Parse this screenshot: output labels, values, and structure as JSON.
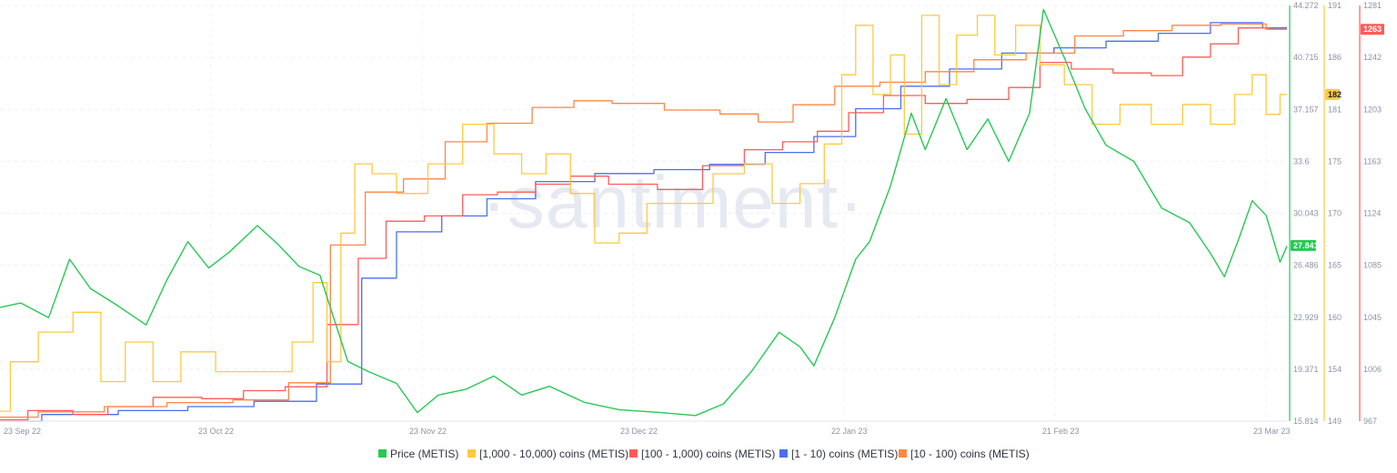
{
  "watermark": "·santiment·",
  "chart_data": {
    "type": "line",
    "x_labels": [
      "23 Sep 22",
      "23 Oct 22",
      "23 Nov 22",
      "23 Dec 22",
      "22 Jan 23",
      "21 Feb 23",
      "23 Mar 23"
    ],
    "x_range": [
      "2022-09-23",
      "2023-03-27"
    ],
    "grid": true,
    "legend_position": "bottom",
    "axes": [
      {
        "id": "price",
        "color": "#26c953",
        "range": [
          15.814,
          44.272
        ],
        "ticks": [
          "44.272",
          "40.715",
          "37.157",
          "33.6",
          "30.043",
          "26.486",
          "22.929",
          "19.371",
          "15.814"
        ],
        "current": "27.841"
      },
      {
        "id": "band1000",
        "color": "#ffc940",
        "range": [
          149,
          191
        ],
        "ticks": [
          "191",
          "186",
          "181",
          "175",
          "170",
          "165",
          "160",
          "154",
          "149"
        ],
        "current": "182"
      },
      {
        "id": "band100",
        "color": "#ff5b5b",
        "range": [
          967,
          1281
        ],
        "ticks": [
          "1281",
          "1242",
          "1203",
          "1163",
          "1124",
          "1085",
          "1045",
          "1006",
          "967"
        ],
        "current": "1263"
      }
    ],
    "series": [
      {
        "name": "Price (METIS)",
        "color": "#26c953",
        "axis": "price",
        "points": [
          [
            "2022-09-23",
            23.6
          ],
          [
            "2022-09-26",
            23.9
          ],
          [
            "2022-09-30",
            22.9
          ],
          [
            "2022-10-03",
            26.9
          ],
          [
            "2022-10-06",
            24.9
          ],
          [
            "2022-10-10",
            23.7
          ],
          [
            "2022-10-14",
            22.4
          ],
          [
            "2022-10-17",
            25.5
          ],
          [
            "2022-10-20",
            28.1
          ],
          [
            "2022-10-23",
            26.3
          ],
          [
            "2022-10-26",
            27.4
          ],
          [
            "2022-10-30",
            29.2
          ],
          [
            "2022-11-02",
            27.9
          ],
          [
            "2022-11-05",
            26.4
          ],
          [
            "2022-11-08",
            25.8
          ],
          [
            "2022-11-12",
            19.9
          ],
          [
            "2022-11-15",
            19.2
          ],
          [
            "2022-11-19",
            18.4
          ],
          [
            "2022-11-22",
            16.4
          ],
          [
            "2022-11-25",
            17.6
          ],
          [
            "2022-11-29",
            18.0
          ],
          [
            "2022-12-03",
            18.9
          ],
          [
            "2022-12-07",
            17.6
          ],
          [
            "2022-12-11",
            18.2
          ],
          [
            "2022-12-16",
            17.1
          ],
          [
            "2022-12-21",
            16.6
          ],
          [
            "2022-12-27",
            16.4
          ],
          [
            "2023-01-01",
            16.2
          ],
          [
            "2023-01-05",
            17.0
          ],
          [
            "2023-01-09",
            19.2
          ],
          [
            "2023-01-13",
            21.9
          ],
          [
            "2023-01-16",
            20.9
          ],
          [
            "2023-01-18",
            19.6
          ],
          [
            "2023-01-21",
            22.9
          ],
          [
            "2023-01-24",
            26.9
          ],
          [
            "2023-01-26",
            28.1
          ],
          [
            "2023-01-29",
            31.9
          ],
          [
            "2023-02-01",
            36.9
          ],
          [
            "2023-02-03",
            34.4
          ],
          [
            "2023-02-06",
            37.9
          ],
          [
            "2023-02-09",
            34.4
          ],
          [
            "2023-02-12",
            36.5
          ],
          [
            "2023-02-15",
            33.6
          ],
          [
            "2023-02-18",
            36.9
          ],
          [
            "2023-02-20",
            44.0
          ],
          [
            "2023-02-23",
            40.7
          ],
          [
            "2023-02-26",
            37.2
          ],
          [
            "2023-03-01",
            34.7
          ],
          [
            "2023-03-05",
            33.6
          ],
          [
            "2023-03-09",
            30.4
          ],
          [
            "2023-03-13",
            29.4
          ],
          [
            "2023-03-16",
            27.3
          ],
          [
            "2023-03-18",
            25.7
          ],
          [
            "2023-03-20",
            28.2
          ],
          [
            "2023-03-22",
            30.9
          ],
          [
            "2023-03-24",
            29.9
          ],
          [
            "2023-03-26",
            26.7
          ],
          [
            "2023-03-27",
            27.8
          ]
        ]
      },
      {
        "name": "[1,000 - 10,000) coins (METIS)",
        "color": "#ffc940",
        "axis": "band1000",
        "points": [
          [
            "2022-09-23",
            150
          ],
          [
            "2022-09-26",
            155
          ],
          [
            "2022-10-01",
            158
          ],
          [
            "2022-10-06",
            160
          ],
          [
            "2022-10-09",
            153
          ],
          [
            "2022-10-13",
            157
          ],
          [
            "2022-10-17",
            153
          ],
          [
            "2022-10-21",
            156
          ],
          [
            "2022-10-27",
            154
          ],
          [
            "2022-11-02",
            154
          ],
          [
            "2022-11-06",
            157
          ],
          [
            "2022-11-08",
            163
          ],
          [
            "2022-11-10",
            155
          ],
          [
            "2022-11-12",
            168
          ],
          [
            "2022-11-14",
            175
          ],
          [
            "2022-11-17",
            174
          ],
          [
            "2022-11-21",
            172
          ],
          [
            "2022-11-26",
            175
          ],
          [
            "2022-12-01",
            179
          ],
          [
            "2022-12-05",
            176
          ],
          [
            "2022-12-09",
            174
          ],
          [
            "2022-12-12",
            176
          ],
          [
            "2022-12-16",
            172
          ],
          [
            "2022-12-19",
            167
          ],
          [
            "2022-12-23",
            168
          ],
          [
            "2022-12-27",
            171
          ],
          [
            "2023-01-01",
            171
          ],
          [
            "2023-01-06",
            174
          ],
          [
            "2023-01-10",
            175
          ],
          [
            "2023-01-14",
            171
          ],
          [
            "2023-01-18",
            173
          ],
          [
            "2023-01-21",
            177
          ],
          [
            "2023-01-23",
            184
          ],
          [
            "2023-01-25",
            189
          ],
          [
            "2023-01-28",
            182
          ],
          [
            "2023-01-30",
            186
          ],
          [
            "2023-02-01",
            178
          ],
          [
            "2023-02-04",
            190
          ],
          [
            "2023-02-06",
            183
          ],
          [
            "2023-02-09",
            188
          ],
          [
            "2023-02-12",
            190
          ],
          [
            "2023-02-14",
            186
          ],
          [
            "2023-02-18",
            189
          ],
          [
            "2023-02-21",
            185
          ],
          [
            "2023-02-25",
            183
          ],
          [
            "2023-03-01",
            179
          ],
          [
            "2023-03-05",
            181
          ],
          [
            "2023-03-10",
            179
          ],
          [
            "2023-03-14",
            181
          ],
          [
            "2023-03-18",
            179
          ],
          [
            "2023-03-21",
            182
          ],
          [
            "2023-03-23",
            184
          ],
          [
            "2023-03-25",
            180
          ],
          [
            "2023-03-27",
            182
          ]
        ]
      },
      {
        "name": "[100 - 1,000) coins (METIS)",
        "color": "#ff5b5b",
        "axis": "band100",
        "points": [
          [
            "2022-09-23",
            968
          ],
          [
            "2022-10-01",
            975
          ],
          [
            "2022-10-06",
            972
          ],
          [
            "2022-10-11",
            978
          ],
          [
            "2022-10-19",
            985
          ],
          [
            "2022-10-25",
            984
          ],
          [
            "2022-10-31",
            990
          ],
          [
            "2022-11-06",
            993
          ],
          [
            "2022-11-12",
            1040
          ],
          [
            "2022-11-15",
            1090
          ],
          [
            "2022-11-20",
            1118
          ],
          [
            "2022-11-26",
            1122
          ],
          [
            "2022-12-01",
            1138
          ],
          [
            "2022-12-06",
            1140
          ],
          [
            "2022-12-12",
            1146
          ],
          [
            "2022-12-16",
            1152
          ],
          [
            "2022-12-23",
            1146
          ],
          [
            "2022-12-30",
            1142
          ],
          [
            "2023-01-05",
            1160
          ],
          [
            "2023-01-11",
            1172
          ],
          [
            "2023-01-16",
            1178
          ],
          [
            "2023-01-21",
            1186
          ],
          [
            "2023-01-25",
            1200
          ],
          [
            "2023-01-31",
            1213
          ],
          [
            "2023-02-06",
            1207
          ],
          [
            "2023-02-12",
            1210
          ],
          [
            "2023-02-18",
            1219
          ],
          [
            "2023-02-21",
            1238
          ],
          [
            "2023-02-27",
            1233
          ],
          [
            "2023-03-05",
            1230
          ],
          [
            "2023-03-10",
            1228
          ],
          [
            "2023-03-14",
            1242
          ],
          [
            "2023-03-18",
            1252
          ],
          [
            "2023-03-22",
            1264
          ],
          [
            "2023-03-27",
            1263
          ]
        ]
      },
      {
        "name": "[1 - 10) coins (METIS)",
        "color": "#4a6ff0",
        "axis": "band100",
        "points": [
          [
            "2022-09-23",
            967
          ],
          [
            "2022-10-05",
            972
          ],
          [
            "2022-10-15",
            975
          ],
          [
            "2022-10-25",
            978
          ],
          [
            "2022-11-03",
            982
          ],
          [
            "2022-11-12",
            995
          ],
          [
            "2022-11-16",
            1075
          ],
          [
            "2022-11-22",
            1110
          ],
          [
            "2022-11-29",
            1122
          ],
          [
            "2022-12-05",
            1135
          ],
          [
            "2022-12-13",
            1148
          ],
          [
            "2022-12-22",
            1154
          ],
          [
            "2022-12-30",
            1157
          ],
          [
            "2023-01-07",
            1161
          ],
          [
            "2023-01-15",
            1170
          ],
          [
            "2023-01-21",
            1182
          ],
          [
            "2023-01-27",
            1203
          ],
          [
            "2023-02-03",
            1220
          ],
          [
            "2023-02-10",
            1233
          ],
          [
            "2023-02-18",
            1245
          ],
          [
            "2023-02-25",
            1249
          ],
          [
            "2023-03-05",
            1254
          ],
          [
            "2023-03-12",
            1260
          ],
          [
            "2023-03-20",
            1268
          ],
          [
            "2023-03-27",
            1264
          ]
        ]
      },
      {
        "name": "[10 - 100) coins (METIS)",
        "color": "#ff8645",
        "axis": "band100",
        "points": [
          [
            "2022-09-23",
            970
          ],
          [
            "2022-10-04",
            974
          ],
          [
            "2022-10-12",
            978
          ],
          [
            "2022-10-22",
            981
          ],
          [
            "2022-10-31",
            983
          ],
          [
            "2022-11-07",
            996
          ],
          [
            "2022-11-12",
            1100
          ],
          [
            "2022-11-17",
            1140
          ],
          [
            "2022-11-23",
            1150
          ],
          [
            "2022-11-29",
            1178
          ],
          [
            "2022-12-05",
            1192
          ],
          [
            "2022-12-12",
            1204
          ],
          [
            "2022-12-17",
            1209
          ],
          [
            "2022-12-23",
            1207
          ],
          [
            "2023-01-01",
            1202
          ],
          [
            "2023-01-08",
            1199
          ],
          [
            "2023-01-12",
            1193
          ],
          [
            "2023-01-18",
            1206
          ],
          [
            "2023-01-24",
            1220
          ],
          [
            "2023-01-31",
            1223
          ],
          [
            "2023-02-06",
            1231
          ],
          [
            "2023-02-14",
            1240
          ],
          [
            "2023-02-21",
            1245
          ],
          [
            "2023-02-28",
            1258
          ],
          [
            "2023-03-07",
            1262
          ],
          [
            "2023-03-14",
            1266
          ],
          [
            "2023-03-21",
            1267
          ],
          [
            "2023-03-27",
            1263
          ]
        ]
      }
    ]
  }
}
